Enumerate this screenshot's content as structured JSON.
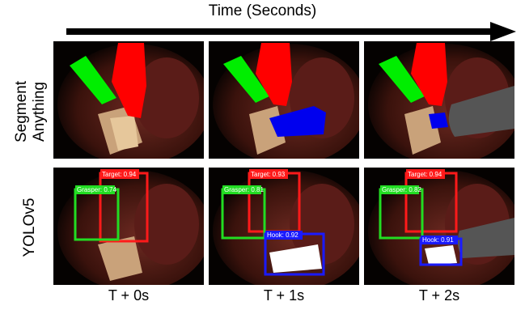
{
  "header": {
    "axis_label": "Time (Seconds)"
  },
  "rows": [
    {
      "label_line1": "Segment",
      "label_line2": "Anything"
    },
    {
      "label_line1": "YOLOv5"
    }
  ],
  "columns": [
    {
      "time": "T + 0s"
    },
    {
      "time": "T + 1s"
    },
    {
      "time": "T + 2s"
    }
  ],
  "detections": [
    [
      {
        "label": "Target: 0.94",
        "color": "#ff1a1a"
      },
      {
        "label": "Grasper: 0.74",
        "color": "#22dd22"
      }
    ],
    [
      {
        "label": "Target: 0.93",
        "color": "#ff1a1a"
      },
      {
        "label": "Grasper: 0.81",
        "color": "#22dd22"
      },
      {
        "label": "Hook: 0.92",
        "color": "#1a1aff"
      }
    ],
    [
      {
        "label": "Target: 0.94",
        "color": "#ff1a1a"
      },
      {
        "label": "Grasper: 0.82",
        "color": "#22dd22"
      },
      {
        "label": "Hook: 0.91",
        "color": "#1a1aff"
      }
    ]
  ],
  "colors": {
    "target": "#ff0000",
    "grasper": "#00ff00",
    "hook": "#0000ff"
  }
}
